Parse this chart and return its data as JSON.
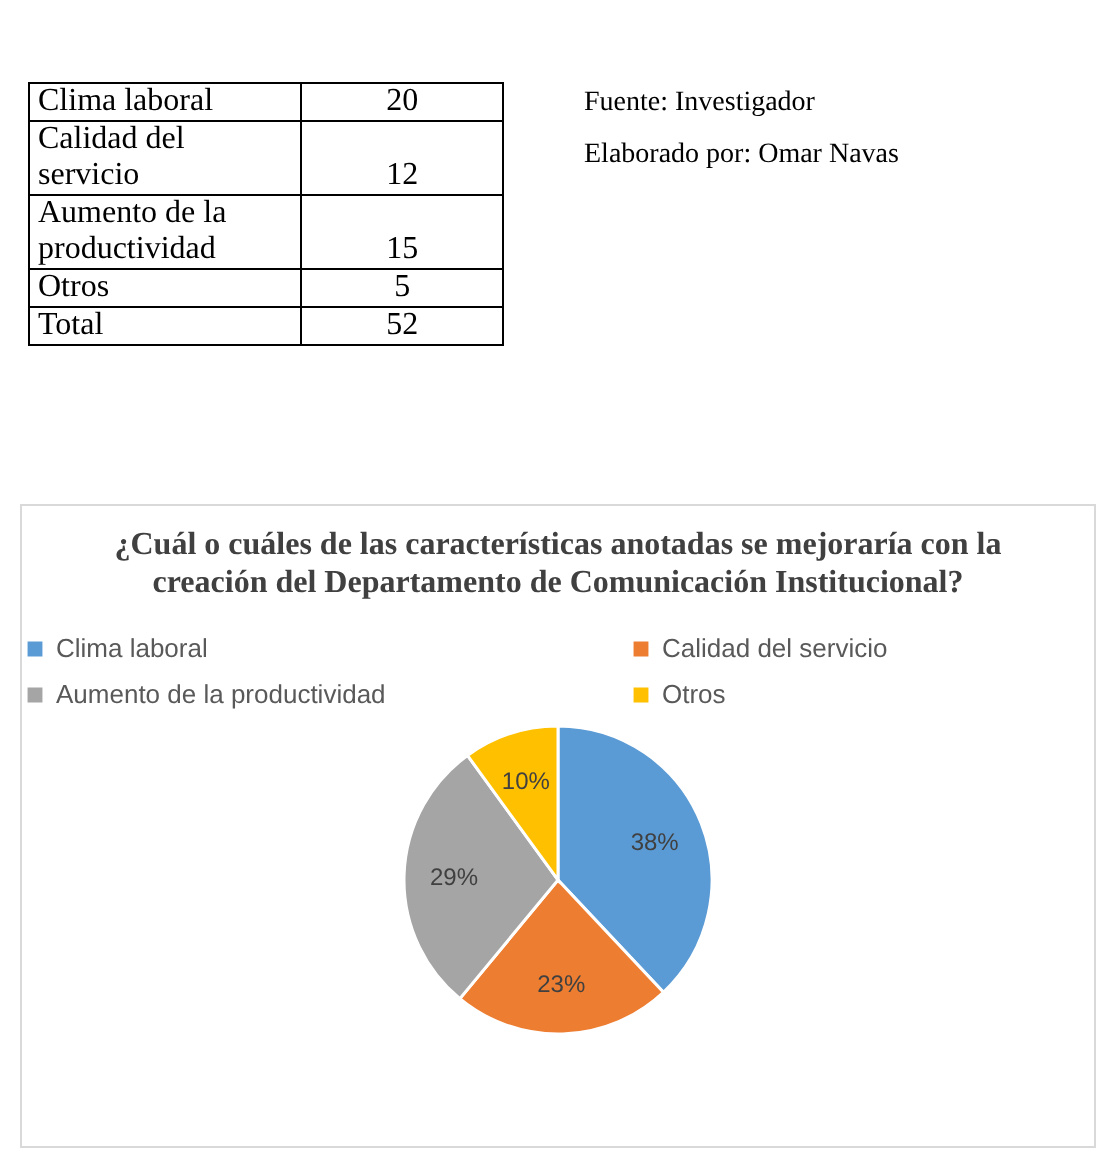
{
  "chart_data": {
    "type": "pie",
    "title": "¿Cuál o cuáles de las características anotadas se mejoraría con la creación del Departamento de Comunicación Institucional?",
    "categories": [
      "Clima laboral",
      "Calidad del servicio",
      "Aumento de la productividad",
      "Otros"
    ],
    "values": [
      38,
      23,
      29,
      10
    ],
    "value_labels": [
      "38%",
      "23%",
      "29%",
      "10%"
    ],
    "colors": [
      "#5b9bd5",
      "#ed7d31",
      "#a5a5a5",
      "#ffc000"
    ],
    "annotations": [
      "20",
      "12",
      "15",
      "5",
      "Total",
      "52",
      "Fuente: Investigador",
      "Elaborado por: Omar Navas"
    ],
    "legend": "top"
  }
}
